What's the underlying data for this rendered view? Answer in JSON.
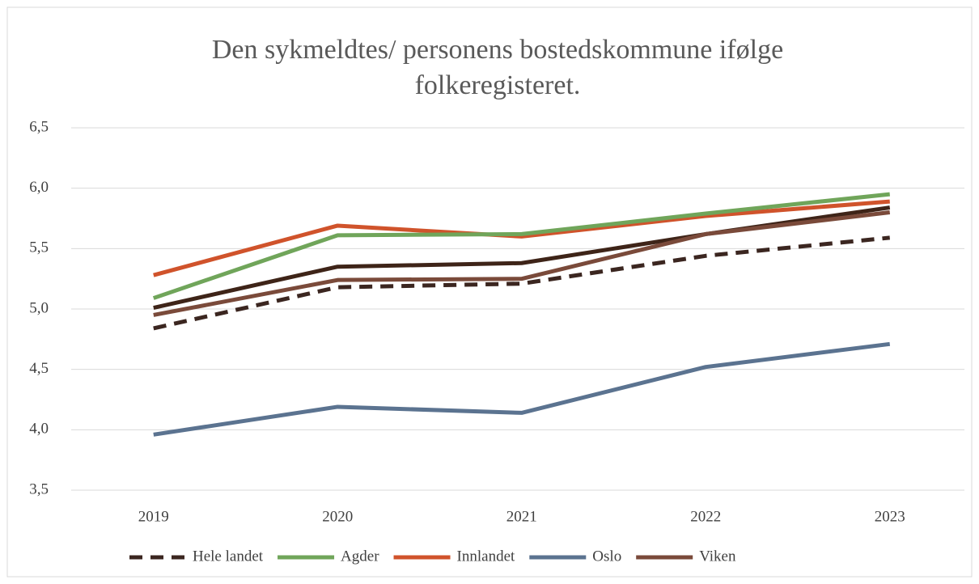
{
  "chart_data": {
    "type": "line",
    "title": "Den sykmeldtes/ personens bostedskommune ifølge folkeregisteret.",
    "categories": [
      "2019",
      "2020",
      "2021",
      "2022",
      "2023"
    ],
    "series": [
      {
        "name": "Hele landet",
        "color": "#3b2620",
        "dashed": true,
        "values": [
          4.84,
          5.18,
          5.21,
          5.44,
          5.59
        ]
      },
      {
        "name": "Agder",
        "color": "#70a55a",
        "values": [
          5.09,
          5.61,
          5.62,
          5.79,
          5.95
        ]
      },
      {
        "name": "Innlandet",
        "color": "#d0532b",
        "values": [
          5.28,
          5.69,
          5.6,
          5.77,
          5.89
        ]
      },
      {
        "name": "Oslo",
        "color": "#5b7390",
        "values": [
          3.96,
          4.19,
          4.14,
          4.52,
          4.71
        ]
      },
      {
        "name": "Viken",
        "color": "#7a4a3a",
        "values": [
          4.95,
          5.24,
          5.25,
          5.62,
          5.8
        ]
      },
      {
        "color": "#3e2418",
        "values": [
          5.01,
          5.35,
          5.38,
          5.62,
          5.84
        ]
      }
    ],
    "ylim": [
      3.5,
      6.5
    ],
    "yticks": [
      {
        "value": 3.5,
        "label": "3,5"
      },
      {
        "value": 4,
        "label": "4,0"
      },
      {
        "value": 4.5,
        "label": "4,5"
      },
      {
        "value": 5,
        "label": "5,0"
      },
      {
        "value": 5.5,
        "label": "5,5"
      },
      {
        "value": 6,
        "label": "6,0"
      },
      {
        "value": 6.5,
        "label": "6,5"
      }
    ],
    "grid": true
  }
}
